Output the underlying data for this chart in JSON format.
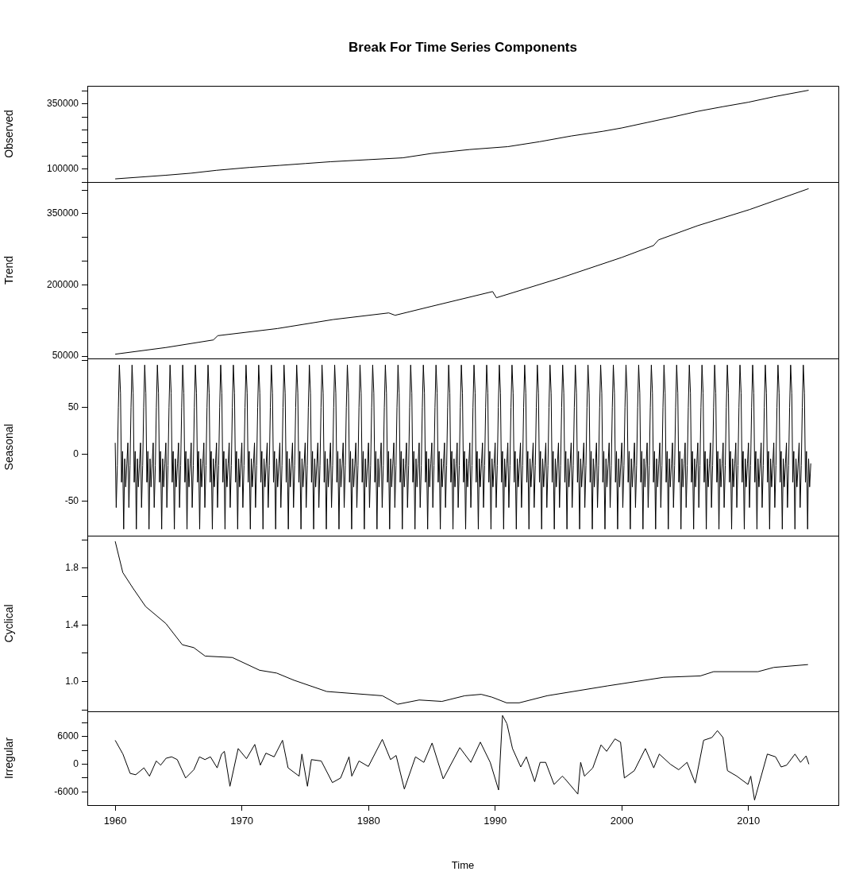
{
  "chart_data": [
    {
      "type": "line",
      "title": "Break For Time Series Components",
      "ylabel": "Observed",
      "xlim": [
        1957.8,
        2017.1
      ],
      "ylim": [
        50000,
        420000
      ],
      "yticks": [
        {
          "value": 50000,
          "label": null
        },
        100000,
        {
          "value": 150000,
          "label": null
        },
        {
          "value": 200000,
          "label": null
        },
        {
          "value": 250000,
          "label": null
        },
        {
          "value": 300000,
          "label": null
        },
        350000,
        {
          "value": 400000,
          "label": null
        }
      ],
      "tick_labels": "y",
      "series": [
        {
          "color": "#000000",
          "x": [
            1960,
            1962,
            1964,
            1966,
            1968,
            1970.6,
            1973,
            1975,
            1977,
            1980,
            1982.7,
            1985,
            1988,
            1991,
            1993.5,
            1996,
            1998.5,
            2000,
            2002,
            2004,
            2006,
            2008,
            2010,
            2012,
            2014.75
          ],
          "values": [
            62000,
            69000,
            76000,
            84000,
            95000,
            106000,
            114000,
            121000,
            128000,
            136000,
            143000,
            160000,
            175000,
            186000,
            205000,
            227000,
            245000,
            258000,
            279000,
            300000,
            322000,
            340000,
            357000,
            378000,
            403000
          ]
        }
      ]
    },
    {
      "type": "line",
      "ylabel": "Trend",
      "xlim": [
        1957.8,
        2017.1
      ],
      "ylim": [
        45000,
        417000
      ],
      "yticks": [
        50000,
        {
          "value": 100000,
          "label": null
        },
        {
          "value": 150000,
          "label": null
        },
        200000,
        {
          "value": 250000,
          "label": null
        },
        {
          "value": 300000,
          "label": null
        },
        350000,
        {
          "value": 400000,
          "label": null
        }
      ],
      "tick_labels": "y",
      "series": [
        {
          "color": "#000000",
          "x": [
            1960,
            1964,
            1967.75,
            1968.1,
            1972.8,
            1977.2,
            1981.6,
            1982.1,
            1985,
            1989.8,
            1990.1,
            1995.2,
            2000,
            2002.5,
            2002.9,
            2006,
            2010.1,
            2014.75
          ],
          "values": [
            54000,
            68000,
            84000,
            93000,
            108000,
            127000,
            141000,
            136000,
            155000,
            186000,
            173000,
            215000,
            258000,
            283000,
            295000,
            325000,
            359000,
            403000
          ]
        }
      ]
    },
    {
      "type": "line",
      "ylabel": "Seasonal",
      "xlim": [
        1957.8,
        2017.1
      ],
      "ylim": [
        -87,
        102
      ],
      "yticks": [
        -50,
        0,
        50,
        {
          "value": 100,
          "label": null
        }
      ],
      "tick_labels": "y",
      "series": [
        {
          "color": "#000000",
          "x": [
            1960,
            1960.08,
            1960.17,
            1960.25,
            1960.33,
            1960.42,
            1960.5,
            1960.58,
            1960.67,
            1960.75,
            1960.83,
            1960.92,
            1961,
            1961.08,
            1961.17,
            1961.25,
            1961.33,
            1961.42,
            1961.5,
            1961.58,
            1961.67,
            1961.75,
            1961.83,
            1961.92,
            1962,
            1962.08,
            1962.17,
            1962.25,
            1962.33,
            1962.42,
            1962.5,
            1962.58,
            1962.67,
            1962.75,
            1962.83,
            1962.92,
            1963,
            1963.08,
            1963.17,
            1963.25,
            1963.33,
            1963.42,
            1963.5,
            1963.58,
            1963.67,
            1963.75,
            1963.83,
            1963.92,
            1964,
            1964.08,
            1964.17,
            1964.25,
            1964.33,
            1964.42,
            1964.5,
            1964.58,
            1964.67,
            1964.75,
            1964.83,
            1964.92,
            1965,
            1965.08,
            1965.17,
            1965.25,
            1965.33,
            1965.42,
            1965.5,
            1965.58,
            1965.67,
            1965.75,
            1965.83,
            1965.92,
            1966,
            1966.08,
            1966.17,
            1966.25,
            1966.33,
            1966.42,
            1966.5,
            1966.58,
            1966.67,
            1966.75,
            1966.83,
            1966.92,
            1967,
            1967.08,
            1967.17,
            1967.25,
            1967.33,
            1967.42,
            1967.5,
            1967.58,
            1967.67,
            1967.75,
            1967.83,
            1967.92,
            1968,
            1968.08,
            1968.17,
            1968.25,
            1968.33,
            1968.42,
            1968.5,
            1968.58,
            1968.67,
            1968.75,
            1968.83,
            1968.92,
            1969,
            1969.08,
            1969.17,
            1969.25,
            1969.33,
            1969.42,
            1969.5,
            1969.58,
            1969.67,
            1969.75,
            1969.83,
            1969.92,
            1970,
            1970.08,
            1970.17,
            1970.25,
            1970.33,
            1970.42,
            1970.5,
            1970.58,
            1970.67,
            1970.75,
            1970.83,
            1970.92,
            1971,
            1971.08,
            1971.17,
            1971.25,
            1971.33,
            1971.42,
            1971.5,
            1971.58,
            1971.67,
            1971.75,
            1971.83,
            1971.92,
            1972,
            1972.08,
            1972.17,
            1972.25,
            1972.33,
            1972.42,
            1972.5,
            1972.58,
            1972.67,
            1972.75,
            1972.83,
            1972.92,
            1973,
            1973.08,
            1973.17,
            1973.25,
            1973.33,
            1973.42,
            1973.5,
            1973.58,
            1973.67,
            1973.75,
            1973.83,
            1973.92,
            1974,
            1974.08,
            1974.17,
            1974.25,
            1974.33,
            1974.42,
            1974.5,
            1974.58,
            1974.67,
            1974.75,
            1974.83,
            1974.92,
            1975,
            1975.08,
            1975.17,
            1975.25,
            1975.33,
            1975.42,
            1975.5,
            1975.58,
            1975.67,
            1975.75,
            1975.83,
            1975.92,
            1976,
            1976.08,
            1976.17,
            1976.25,
            1976.33,
            1976.42,
            1976.5,
            1976.58,
            1976.67,
            1976.75,
            1976.83,
            1976.92,
            1977,
            1977.08,
            1977.17,
            1977.25,
            1977.33,
            1977.42,
            1977.5,
            1977.58,
            1977.67,
            1977.75,
            1977.83,
            1977.92,
            1978,
            1978.08,
            1978.17,
            1978.25,
            1978.33,
            1978.42,
            1978.5,
            1978.58,
            1978.67,
            1978.75,
            1978.83,
            1978.92,
            1979,
            1979.08,
            1979.17,
            1979.25,
            1979.33,
            1979.42,
            1979.5,
            1979.58,
            1979.67,
            1979.75,
            1979.83,
            1979.92,
            1980,
            1980.08,
            1980.17,
            1980.25,
            1980.33,
            1980.42,
            1980.5,
            1980.58,
            1980.67,
            1980.75,
            1980.83,
            1980.92,
            1981,
            1981.08,
            1981.17,
            1981.25,
            1981.33,
            1981.42,
            1981.5,
            1981.58,
            1981.67,
            1981.75,
            1981.83,
            1981.92,
            1982,
            1982.08,
            1982.17,
            1982.25,
            1982.33,
            1982.42,
            1982.5,
            1982.58,
            1982.67,
            1982.75,
            1982.83,
            1982.92,
            1983,
            1983.08,
            1983.17,
            1983.25,
            1983.33,
            1983.42,
            1983.5,
            1983.58,
            1983.67,
            1983.75,
            1983.83,
            1983.92,
            1984,
            1984.08,
            1984.17,
            1984.25,
            1984.33,
            1984.42,
            1984.5,
            1984.58,
            1984.67,
            1984.75,
            1984.83,
            1984.92,
            1985,
            1985.08,
            1985.17,
            1985.25,
            1985.33,
            1985.42,
            1985.5,
            1985.58,
            1985.67,
            1985.75,
            1985.83,
            1985.92,
            1986,
            1986.08,
            1986.17,
            1986.25,
            1986.33,
            1986.42,
            1986.5,
            1986.58,
            1986.67,
            1986.75,
            1986.83,
            1986.92,
            1987,
            1987.08,
            1987.17,
            1987.25,
            1987.33,
            1987.42,
            1987.5,
            1987.58,
            1987.67,
            1987.75,
            1987.83,
            1987.92,
            1988,
            1988.08,
            1988.17,
            1988.25,
            1988.33,
            1988.42,
            1988.5,
            1988.58,
            1988.67,
            1988.75,
            1988.83,
            1988.92,
            1989,
            1989.08,
            1989.17,
            1989.25,
            1989.33,
            1989.42,
            1989.5,
            1989.58,
            1989.67,
            1989.75,
            1989.83,
            1989.92,
            1990,
            1990.08,
            1990.17,
            1990.25,
            1990.33,
            1990.42,
            1990.5,
            1990.58,
            1990.67,
            1990.75,
            1990.83,
            1990.92,
            1991,
            1991.08,
            1991.17,
            1991.25,
            1991.33,
            1991.42,
            1991.5,
            1991.58,
            1991.67,
            1991.75,
            1991.83,
            1991.92,
            1992,
            1992.08,
            1992.17,
            1992.25,
            1992.33,
            1992.42,
            1992.5,
            1992.58,
            1992.67,
            1992.75,
            1992.83,
            1992.92,
            1993,
            1993.08,
            1993.17,
            1993.25,
            1993.33,
            1993.42,
            1993.5,
            1993.58,
            1993.67,
            1993.75,
            1993.83,
            1993.92,
            1994,
            1994.08,
            1994.17,
            1994.25,
            1994.33,
            1994.42,
            1994.5,
            1994.58,
            1994.67,
            1994.75,
            1994.83,
            1994.92,
            1995,
            1995.08,
            1995.17,
            1995.25,
            1995.33,
            1995.42,
            1995.5,
            1995.58,
            1995.67,
            1995.75,
            1995.83,
            1995.92,
            1996,
            1996.08,
            1996.17,
            1996.25,
            1996.33,
            1996.42,
            1996.5,
            1996.58,
            1996.67,
            1996.75,
            1996.83,
            1996.92,
            1997,
            1997.08,
            1997.17,
            1997.25,
            1997.33,
            1997.42,
            1997.5,
            1997.58,
            1997.67,
            1997.75,
            1997.83,
            1997.92,
            1998,
            1998.08,
            1998.17,
            1998.25,
            1998.33,
            1998.42,
            1998.5,
            1998.58,
            1998.67,
            1998.75,
            1998.83,
            1998.92,
            1999,
            1999.08,
            1999.17,
            1999.25,
            1999.33,
            1999.42,
            1999.5,
            1999.58,
            1999.67,
            1999.75,
            1999.83,
            1999.92,
            2000,
            2000.08,
            2000.17,
            2000.25,
            2000.33,
            2000.42,
            2000.5,
            2000.58,
            2000.67,
            2000.75,
            2000.83,
            2000.92,
            2001,
            2001.08,
            2001.17,
            2001.25,
            2001.33,
            2001.42,
            2001.5,
            2001.58,
            2001.67,
            2001.75,
            2001.83,
            2001.92,
            2002,
            2002.08,
            2002.17,
            2002.25,
            2002.33,
            2002.42,
            2002.5,
            2002.58,
            2002.67,
            2002.75,
            2002.83,
            2002.92,
            2003,
            2003.08,
            2003.17,
            2003.25,
            2003.33,
            2003.42,
            2003.5,
            2003.58,
            2003.67,
            2003.75,
            2003.83,
            2003.92,
            2004,
            2004.08,
            2004.17,
            2004.25,
            2004.33,
            2004.42,
            2004.5,
            2004.58,
            2004.67,
            2004.75,
            2004.83,
            2004.92,
            2005,
            2005.08,
            2005.17,
            2005.25,
            2005.33,
            2005.42,
            2005.5,
            2005.58,
            2005.67,
            2005.75,
            2005.83,
            2005.92,
            2006,
            2006.08,
            2006.17,
            2006.25,
            2006.33,
            2006.42,
            2006.5,
            2006.58,
            2006.67,
            2006.75,
            2006.83,
            2006.92,
            2007,
            2007.08,
            2007.17,
            2007.25,
            2007.33,
            2007.42,
            2007.5,
            2007.58,
            2007.67,
            2007.75,
            2007.83,
            2007.92,
            2008,
            2008.08,
            2008.17,
            2008.25,
            2008.33,
            2008.42,
            2008.5,
            2008.58,
            2008.67,
            2008.75,
            2008.83,
            2008.92,
            2009,
            2009.08,
            2009.17,
            2009.25,
            2009.33,
            2009.42,
            2009.5,
            2009.58,
            2009.67,
            2009.75,
            2009.83,
            2009.92,
            2010,
            2010.08,
            2010.17,
            2010.25,
            2010.33,
            2010.42,
            2010.5,
            2010.58,
            2010.67,
            2010.75,
            2010.83,
            2010.92,
            2011,
            2011.08,
            2011.17,
            2011.25,
            2011.33,
            2011.42,
            2011.5,
            2011.58,
            2011.67,
            2011.75,
            2011.83,
            2011.92,
            2012,
            2012.08,
            2012.17,
            2012.25,
            2012.33,
            2012.42,
            2012.5,
            2012.58,
            2012.67,
            2012.75,
            2012.83,
            2012.92,
            2013,
            2013.08,
            2013.17,
            2013.25,
            2013.33,
            2013.42,
            2013.5,
            2013.58,
            2013.67,
            2013.75,
            2013.83,
            2013.92,
            2014,
            2014.08,
            2014.17,
            2014.25,
            2014.33,
            2014.42,
            2014.5,
            2014.58,
            2014.67,
            2014.75,
            2014.83,
            2014.92
          ],
          "values": [
            12,
            -57,
            -12,
            50,
            95,
            65,
            -30,
            3,
            -80,
            -5,
            -35,
            -10,
            12,
            -57,
            -12,
            50,
            95,
            65,
            -30,
            3,
            -80,
            -5,
            -35,
            -10,
            12,
            -57,
            -12,
            50,
            95,
            65,
            -30,
            3,
            -80,
            -5,
            -35,
            -10,
            12,
            -57,
            -12,
            50,
            95,
            65,
            -30,
            3,
            -80,
            -5,
            -35,
            -10,
            12,
            -57,
            -12,
            50,
            95,
            65,
            -30,
            3,
            -80,
            -5,
            -35,
            -10,
            12,
            -57,
            -12,
            50,
            95,
            65,
            -30,
            3,
            -80,
            -5,
            -35,
            -10,
            12,
            -57,
            -12,
            50,
            95,
            65,
            -30,
            3,
            -80,
            -5,
            -35,
            -10,
            12,
            -57,
            -12,
            50,
            95,
            65,
            -30,
            3,
            -80,
            -5,
            -35,
            -10,
            12,
            -57,
            -12,
            50,
            95,
            65,
            -30,
            3,
            -80,
            -5,
            -35,
            -10,
            12,
            -57,
            -12,
            50,
            95,
            65,
            -30,
            3,
            -80,
            -5,
            -35,
            -10,
            12,
            -57,
            -12,
            50,
            95,
            65,
            -30,
            3,
            -80,
            -5,
            -35,
            -10,
            12,
            -57,
            -12,
            50,
            95,
            65,
            -30,
            3,
            -80,
            -5,
            -35,
            -10,
            12,
            -57,
            -12,
            50,
            95,
            65,
            -30,
            3,
            -80,
            -5,
            -35,
            -10,
            12,
            -57,
            -12,
            50,
            95,
            65,
            -30,
            3,
            -80,
            -5,
            -35,
            -10,
            12,
            -57,
            -12,
            50,
            95,
            65,
            -30,
            3,
            -80,
            -5,
            -35,
            -10,
            12,
            -57,
            -12,
            50,
            95,
            65,
            -30,
            3,
            -80,
            -5,
            -35,
            -10,
            12,
            -57,
            -12,
            50,
            95,
            65,
            -30,
            3,
            -80,
            -5,
            -35,
            -10,
            12,
            -57,
            -12,
            50,
            95,
            65,
            -30,
            3,
            -80,
            -5,
            -35,
            -10,
            12,
            -57,
            -12,
            50,
            95,
            65,
            -30,
            3,
            -80,
            -5,
            -35,
            -10,
            12,
            -57,
            -12,
            50,
            95,
            65,
            -30,
            3,
            -80,
            -5,
            -35,
            -10,
            12,
            -57,
            -12,
            50,
            95,
            65,
            -30,
            3,
            -80,
            -5,
            -35,
            -10,
            12,
            -57,
            -12,
            50,
            95,
            65,
            -30,
            3,
            -80,
            -5,
            -35,
            -10,
            12,
            -57,
            -12,
            50,
            95,
            65,
            -30,
            3,
            -80,
            -5,
            -35,
            -10,
            12,
            -57,
            -12,
            50,
            95,
            65,
            -30,
            3,
            -80,
            -5,
            -35,
            -10,
            12,
            -57,
            -12,
            50,
            95,
            65,
            -30,
            3,
            -80,
            -5,
            -35,
            -10,
            12,
            -57,
            -12,
            50,
            95,
            65,
            -30,
            3,
            -80,
            -5,
            -35,
            -10,
            12,
            -57,
            -12,
            50,
            95,
            65,
            -30,
            3,
            -80,
            -5,
            -35,
            -10,
            12,
            -57,
            -12,
            50,
            95,
            65,
            -30,
            3,
            -80,
            -5,
            -35,
            -10,
            12,
            -57,
            -12,
            50,
            95,
            65,
            -30,
            3,
            -80,
            -5,
            -35,
            -10,
            12,
            -57,
            -12,
            50,
            95,
            65,
            -30,
            3,
            -80,
            -5,
            -35,
            -10,
            12,
            -57,
            -12,
            50,
            95,
            65,
            -30,
            3,
            -80,
            -5,
            -35,
            -10,
            12,
            -57,
            -12,
            50,
            95,
            65,
            -30,
            3,
            -80,
            -5,
            -35,
            -10,
            12,
            -57,
            -12,
            50,
            95,
            65,
            -30,
            3,
            -80,
            -5,
            -35,
            -10,
            12,
            -57,
            -12,
            50,
            95,
            65,
            -30,
            3,
            -80,
            -5,
            -35,
            -10,
            12,
            -57,
            -12,
            50,
            95,
            65,
            -30,
            3,
            -80,
            -5,
            -35,
            -10,
            12,
            -57,
            -12,
            50,
            95,
            65,
            -30,
            3,
            -80,
            -5,
            -35,
            -10,
            12,
            -57,
            -12,
            50,
            95,
            65,
            -30,
            3,
            -80,
            -5,
            -35,
            -10,
            12,
            -57,
            -12,
            50,
            95,
            65,
            -30,
            3,
            -80,
            -5,
            -35,
            -10,
            12,
            -57,
            -12,
            50,
            95,
            65,
            -30,
            3,
            -80,
            -5,
            -35,
            -10,
            12,
            -57,
            -12,
            50,
            95,
            65,
            -30,
            3,
            -80,
            -5,
            -35,
            -10,
            12,
            -57,
            -12,
            50,
            95,
            65,
            -30,
            3,
            -80,
            -5,
            -35,
            -10,
            12,
            -57,
            -12,
            50,
            95,
            65,
            -30,
            3,
            -80,
            -5,
            -35,
            -10,
            12,
            -57,
            -12,
            50,
            95,
            65,
            -30,
            3,
            -80,
            -5,
            -35,
            -10,
            12,
            -57,
            -12,
            50,
            95,
            65,
            -30,
            3,
            -80,
            -5,
            -35,
            -10,
            12,
            -57,
            -12,
            50,
            95,
            65,
            -30,
            3,
            -80,
            -5,
            -35,
            -10,
            12,
            -57,
            -12,
            50,
            95,
            65,
            -30,
            3,
            -80,
            -5,
            -35,
            -10,
            12,
            -57,
            -12,
            50,
            95,
            65,
            -30,
            3,
            -80,
            -5,
            -35,
            -10,
            12,
            -57,
            -12,
            50,
            95,
            65,
            -30,
            3,
            -80,
            -5,
            -35,
            -10,
            12,
            -57,
            -12,
            50,
            95,
            65,
            -30,
            3,
            -80,
            -5,
            -35,
            -10,
            12,
            -57,
            -12,
            50,
            95,
            65,
            -30,
            3,
            -80,
            -5,
            -35,
            -10,
            12,
            -57,
            -12,
            50,
            95,
            65,
            -30,
            3,
            -80,
            -5,
            -35,
            -10,
            12,
            -57,
            -12,
            50,
            95,
            65,
            -30,
            3,
            -80,
            -5,
            -35,
            -10,
            12,
            -57,
            -12,
            50,
            95,
            65,
            -30,
            3,
            -80,
            -5,
            -35,
            -10,
            12,
            -57,
            -12,
            50,
            95,
            65,
            -30,
            3,
            -80,
            -5,
            -35,
            -10,
            12,
            -57,
            -12,
            50,
            95,
            65,
            -30,
            3,
            -80,
            -5,
            -35,
            -10
          ]
        }
      ]
    },
    {
      "type": "line",
      "ylabel": "Cyclical",
      "xlim": [
        1957.8,
        2017.1
      ],
      "ylim": [
        0.79,
        2.03
      ],
      "yticks": [
        {
          "value": 0.8,
          "label": null
        },
        {
          "value": 1,
          "label": "1.0"
        },
        {
          "value": 1.2,
          "label": null
        },
        1.4,
        {
          "value": 1.6,
          "label": null
        },
        1.8,
        {
          "value": 2,
          "label": null
        }
      ],
      "tick_labels": "y",
      "series": [
        {
          "color": "#000000",
          "x": [
            1960,
            1960.6,
            1961.4,
            1962.4,
            1964,
            1965.3,
            1966.2,
            1967.1,
            1969.25,
            1971.4,
            1972.75,
            1974.1,
            1976.7,
            1981.1,
            1982.3,
            1984,
            1985.8,
            1987.6,
            1988.9,
            1989.75,
            1990.9,
            1991.9,
            1994.1,
            1998.9,
            2003.3,
            2006.2,
            2007.25,
            2010.75,
            2012,
            2014.7
          ],
          "values": [
            1.99,
            1.77,
            1.66,
            1.53,
            1.41,
            1.26,
            1.24,
            1.18,
            1.17,
            1.08,
            1.06,
            1.01,
            0.93,
            0.9,
            0.84,
            0.87,
            0.86,
            0.9,
            0.91,
            0.89,
            0.85,
            0.85,
            0.9,
            0.97,
            1.03,
            1.04,
            1.07,
            1.07,
            1.1,
            1.12
          ]
        }
      ]
    },
    {
      "type": "line",
      "ylabel": "Irregular",
      "xlabel": "Time",
      "xlim": [
        1957.8,
        2017.1
      ],
      "xticks": [
        1960,
        1970,
        1980,
        1990,
        2000,
        2010
      ],
      "ylim": [
        -8900,
        11500
      ],
      "yticks": [
        -6000,
        {
          "value": -3000,
          "label": null
        },
        0,
        {
          "value": 3000,
          "label": null
        },
        6000,
        {
          "value": 9000,
          "label": null
        }
      ],
      "series": [
        {
          "color": "#000000",
          "x": [
            1960,
            1960.61,
            1961.18,
            1961.62,
            1962.27,
            1962.71,
            1963.24,
            1963.59,
            1964.02,
            1964.46,
            1964.9,
            1965.56,
            1966.21,
            1966.65,
            1967.09,
            1967.52,
            1968.05,
            1968.4,
            1968.62,
            1969.06,
            1969.71,
            1970.37,
            1971.02,
            1971.46,
            1971.9,
            1972.55,
            1973.21,
            1973.65,
            1974.52,
            1974.74,
            1975.18,
            1975.49,
            1976.27,
            1977.15,
            1977.8,
            1978.46,
            1978.68,
            1979.25,
            1979.99,
            1981.09,
            1981.74,
            1982.18,
            1982.83,
            1983.71,
            1984.37,
            1985.02,
            1985.9,
            1987.21,
            1988.08,
            1988.83,
            1989.61,
            1990.27,
            1990.58,
            1990.93,
            1991.37,
            1992.02,
            1992.46,
            1993.12,
            1993.55,
            1993.99,
            1994.65,
            1995.3,
            1995.52,
            1996.53,
            1996.75,
            1997.05,
            1997.71,
            1998.36,
            1998.8,
            1999.46,
            1999.9,
            2000.2,
            2000.99,
            2001.86,
            2002.52,
            2002.96,
            2003.83,
            2004.49,
            2005.15,
            2005.8,
            2006.46,
            2007.11,
            2007.55,
            2007.99,
            2008.34,
            2009.08,
            2009.96,
            2010.18,
            2010.48,
            2011.49,
            2012.14,
            2012.58,
            2013.02,
            2013.67,
            2014.11,
            2014.55,
            2014.77
          ],
          "values": [
            5200,
            2200,
            -2000,
            -2300,
            -800,
            -2600,
            700,
            -200,
            1300,
            1600,
            1000,
            -3000,
            -1200,
            1600,
            1000,
            1600,
            -800,
            2200,
            2800,
            -4800,
            3400,
            1200,
            4300,
            -200,
            2400,
            1600,
            5200,
            -800,
            -2600,
            2200,
            -4800,
            1000,
            700,
            -4000,
            -3000,
            1600,
            -2600,
            700,
            -500,
            5400,
            1000,
            1900,
            -5400,
            1600,
            400,
            4600,
            -3200,
            3600,
            400,
            4800,
            400,
            -5600,
            10600,
            8800,
            3400,
            -600,
            1600,
            -3800,
            400,
            400,
            -4400,
            -2600,
            -3200,
            -6500,
            400,
            -2600,
            -800,
            4200,
            2800,
            5500,
            4800,
            -3000,
            -1400,
            3400,
            -800,
            2200,
            0,
            -1200,
            400,
            -4100,
            5200,
            5800,
            7300,
            5800,
            -1400,
            -2600,
            -4400,
            -2600,
            -7800,
            2200,
            1600,
            -600,
            -200,
            2200,
            400,
            1800,
            0
          ]
        }
      ]
    }
  ]
}
